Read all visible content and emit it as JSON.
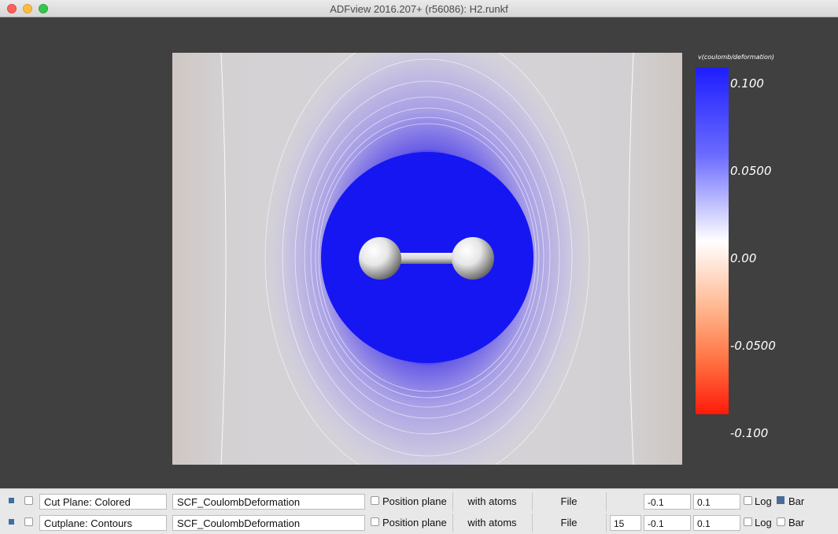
{
  "window": {
    "title": "ADFview 2016.207+ (r56086): H2.runkf"
  },
  "colorbar": {
    "title": "v(coulomb/deformation)",
    "labels": [
      "0.100",
      "0.0500",
      "0.00",
      "-0.0500",
      "-0.100"
    ],
    "colors": {
      "max": "#1e1eff",
      "mid": "#ffffff",
      "min": "#ff1a0a"
    }
  },
  "rows": [
    {
      "name": "Cut Plane: Colored",
      "field": "SCF_CoulombDeformation",
      "position_plane": "Position plane",
      "with_atoms": "with atoms",
      "file": "File",
      "count": "",
      "min": "-0.1",
      "max": "0.1",
      "log": "Log",
      "bar": "Bar",
      "bar_checked": true
    },
    {
      "name": "Cutplane: Contours",
      "field": "SCF_CoulombDeformation",
      "position_plane": "Position plane",
      "with_atoms": "with atoms",
      "file": "File",
      "count": "15",
      "min": "-0.1",
      "max": "0.1",
      "log": "Log",
      "bar": "Bar",
      "bar_checked": false
    }
  ]
}
